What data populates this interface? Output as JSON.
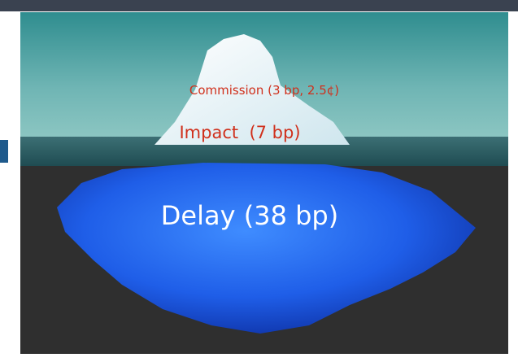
{
  "labels": {
    "commission": "Commission (3 bp, 2.5¢)",
    "impact": "Impact  (7 bp)",
    "delay": "Delay (38 bp)"
  }
}
